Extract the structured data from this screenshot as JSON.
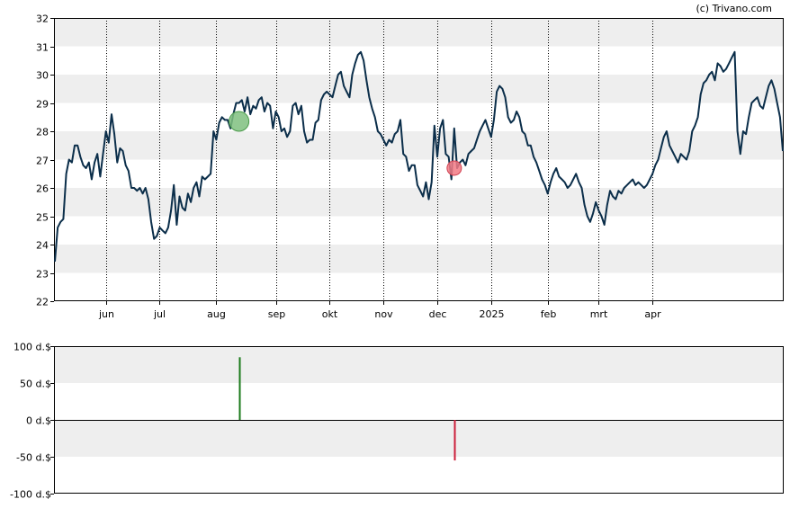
{
  "credit": "(c) Trivano.com",
  "chart_data": [
    {
      "type": "line",
      "title": "",
      "xlabel": "",
      "ylabel": "",
      "ylim": [
        22,
        32
      ],
      "yticks": [
        "22",
        "23",
        "24",
        "25",
        "26",
        "27",
        "28",
        "29",
        "30",
        "31",
        "32"
      ],
      "xticks": [
        {
          "label": "jun",
          "index": 18
        },
        {
          "label": "jul",
          "index": 37
        },
        {
          "label": "aug",
          "index": 57
        },
        {
          "label": "sep",
          "index": 78
        },
        {
          "label": "okt",
          "index": 97
        },
        {
          "label": "nov",
          "index": 116
        },
        {
          "label": "dec",
          "index": 135
        },
        {
          "label": "2025",
          "index": 154
        },
        {
          "label": "feb",
          "index": 174
        },
        {
          "label": "mrt",
          "index": 192
        },
        {
          "label": "apr",
          "index": 211
        }
      ],
      "grid": "vertical dotted at month starts; alternating horizontal bands",
      "line_color": "#0b2e4a",
      "series": [
        {
          "values": [
            23.4,
            24.6,
            24.8,
            24.9,
            26.5,
            27.0,
            26.9,
            27.5,
            27.5,
            27.1,
            26.8,
            26.7,
            26.9,
            26.3,
            26.9,
            27.2,
            26.4,
            27.2,
            28.0,
            27.6,
            28.6,
            27.9,
            26.9,
            27.4,
            27.3,
            26.8,
            26.6,
            26.0,
            26.0,
            25.9,
            26.0,
            25.8,
            26.0,
            25.6,
            24.8,
            24.2,
            24.3,
            24.6,
            24.5,
            24.4,
            24.6,
            25.2,
            26.1,
            24.7,
            25.7,
            25.3,
            25.2,
            25.8,
            25.5,
            26.0,
            26.2,
            25.7,
            26.4,
            26.3,
            26.4,
            26.5,
            28.0,
            27.7,
            28.3,
            28.5,
            28.4,
            28.4,
            28.1,
            28.6,
            29.0,
            29.0,
            29.1,
            28.7,
            29.2,
            28.6,
            28.9,
            28.8,
            29.1,
            29.2,
            28.7,
            29.0,
            28.9,
            28.1,
            28.7,
            28.5,
            28.0,
            28.1,
            27.8,
            28.0,
            28.9,
            29.0,
            28.6,
            28.9,
            28.0,
            27.6,
            27.7,
            27.7,
            28.3,
            28.4,
            29.1,
            29.3,
            29.4,
            29.3,
            29.2,
            29.6,
            30.0,
            30.1,
            29.6,
            29.4,
            29.2,
            30.0,
            30.4,
            30.7,
            30.8,
            30.5,
            29.8,
            29.2,
            28.8,
            28.5,
            28.0,
            27.9,
            27.7,
            27.5,
            27.7,
            27.6,
            27.9,
            28.0,
            28.4,
            27.2,
            27.1,
            26.6,
            26.8,
            26.8,
            26.1,
            25.9,
            25.7,
            26.2,
            25.6,
            26.2,
            28.2,
            27.1,
            28.1,
            28.4,
            27.2,
            27.1,
            26.3,
            28.1,
            26.7,
            26.9,
            27.0,
            26.8,
            27.2,
            27.3,
            27.4,
            27.7,
            28.0,
            28.2,
            28.4,
            28.1,
            27.8,
            28.4,
            29.4,
            29.6,
            29.5,
            29.2,
            28.5,
            28.3,
            28.4,
            28.7,
            28.5,
            28.0,
            27.9,
            27.5,
            27.5,
            27.1,
            26.9,
            26.6,
            26.3,
            26.1,
            25.8,
            26.2,
            26.5,
            26.7,
            26.4,
            26.3,
            26.2,
            26.0,
            26.1,
            26.3,
            26.5,
            26.2,
            26.0,
            25.4,
            25.0,
            24.8,
            25.1,
            25.5,
            25.2,
            25.0,
            24.7,
            25.4,
            25.9,
            25.7,
            25.6,
            25.9,
            25.8,
            26.0,
            26.1,
            26.2,
            26.3,
            26.1,
            26.2,
            26.1,
            26.0,
            26.1,
            26.3,
            26.5,
            26.8,
            27.0,
            27.4,
            27.8,
            28.0,
            27.5,
            27.3,
            27.1,
            26.9,
            27.2,
            27.1,
            27.0,
            27.3,
            28.0,
            28.2,
            28.5,
            29.3,
            29.7,
            29.8,
            30.0,
            30.1,
            29.8,
            30.4,
            30.3,
            30.1,
            30.2,
            30.4,
            30.6,
            30.8,
            28.0,
            27.2,
            28.0,
            27.9,
            28.5,
            29.0,
            29.1,
            29.2,
            28.9,
            28.8,
            29.2,
            29.6,
            29.8,
            29.5,
            29.0,
            28.5,
            27.3
          ]
        }
      ],
      "markers": [
        {
          "type": "buy",
          "index": 65,
          "value": 28.35,
          "color": "#7fbf7f"
        },
        {
          "type": "sell",
          "index": 141,
          "value": 26.7,
          "color": "#f27a85"
        }
      ]
    },
    {
      "type": "bar",
      "title": "",
      "ylim": [
        -100,
        100
      ],
      "yticks": [
        "-100 d.$",
        "-50 d.$",
        "0 d.$",
        "50 d.$",
        "100 d.$"
      ],
      "bars": [
        {
          "index": 65,
          "value": 85,
          "color": "#1a7a1a"
        },
        {
          "index": 141,
          "value": -55,
          "color": "#cc1f3a"
        }
      ]
    }
  ]
}
